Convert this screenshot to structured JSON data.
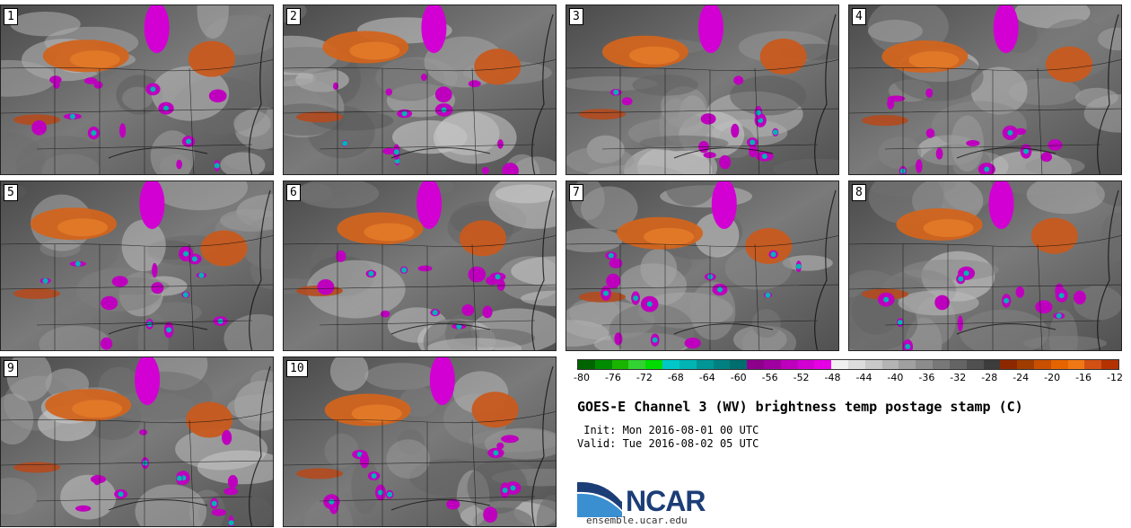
{
  "panels": [
    "1",
    "2",
    "3",
    "4",
    "5",
    "6",
    "7",
    "8",
    "9",
    "10"
  ],
  "colorbar": {
    "colors": [
      "#006400",
      "#008c00",
      "#19b400",
      "#32d232",
      "#00dc00",
      "#00c8c8",
      "#00b4b4",
      "#009696",
      "#008080",
      "#006e6e",
      "#8c008c",
      "#a000a0",
      "#be00be",
      "#d200d2",
      "#e600e6",
      "#f0f0f0",
      "#dcdcdc",
      "#c8c8c8",
      "#b4b4b4",
      "#a0a0a0",
      "#8c8c8c",
      "#787878",
      "#646464",
      "#505050",
      "#3c3c3c",
      "#8c2800",
      "#a03c00",
      "#c85000",
      "#e66400",
      "#f07814",
      "#d25014",
      "#b43200"
    ],
    "ticks": [
      "-80",
      "-76",
      "-72",
      "-68",
      "-64",
      "-60",
      "-56",
      "-52",
      "-48",
      "-44",
      "-40",
      "-36",
      "-32",
      "-28",
      "-24",
      "-20",
      "-16",
      "-12"
    ]
  },
  "title": "GOES-E Channel 3 (WV) brightness temp postage stamp (C)",
  "init": " Init: Mon 2016-08-01 00 UTC",
  "valid": "Valid: Tue 2016-08-02 05 UTC",
  "logo_text": "NCAR",
  "url": "ensemble.ucar.edu"
}
